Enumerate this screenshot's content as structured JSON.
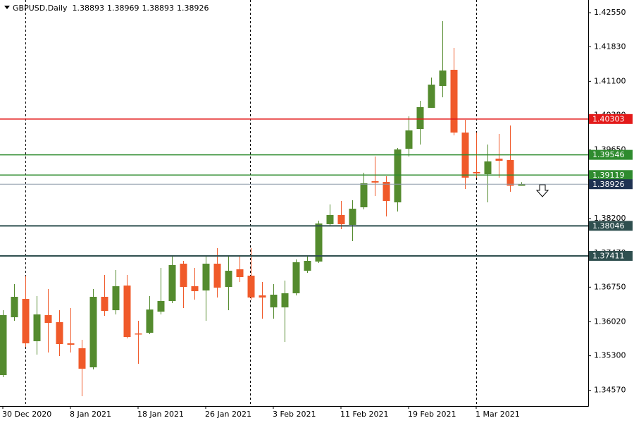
{
  "chart_data": {
    "type": "candlestick",
    "symbol": "GBPUSD,Daily",
    "categories": [
      "30 Dec 2020",
      null,
      null,
      null,
      null,
      null,
      "8 Jan 2021",
      null,
      null,
      null,
      null,
      null,
      "18 Jan 2021",
      null,
      null,
      null,
      null,
      null,
      "26 Jan 2021",
      null,
      null,
      null,
      null,
      null,
      "3 Feb 2021",
      null,
      null,
      null,
      null,
      null,
      "11 Feb 2021",
      null,
      null,
      null,
      null,
      null,
      "19 Feb 2021",
      null,
      null,
      null,
      null,
      null,
      "1 Mar 2021",
      null,
      null,
      null,
      null
    ],
    "open": [
      1.34892,
      1.36114,
      1.36501,
      1.35608,
      1.36159,
      1.3601,
      1.35563,
      1.35459,
      1.35056,
      1.36546,
      1.36263,
      1.36784,
      1.35771,
      1.35786,
      1.36233,
      1.36457,
      1.37246,
      1.3677,
      1.3668,
      1.37246,
      1.36755,
      1.37127,
      1.36993,
      1.36576,
      1.36323,
      1.36323,
      1.36621,
      1.37097,
      1.37291,
      1.38081,
      1.38274,
      1.38066,
      1.38438,
      1.38989,
      1.38974,
      1.38542,
      1.39675,
      1.40092,
      1.40539,
      1.41001,
      1.41343,
      1.40017,
      1.39183,
      1.39138,
      1.39466,
      1.39436,
      1.38893
    ],
    "high": [
      1.36263,
      1.36814,
      1.36978,
      1.36561,
      1.3671,
      1.36263,
      1.36308,
      1.35637,
      1.3671,
      1.37008,
      1.37112,
      1.37008,
      1.3604,
      1.36561,
      1.37157,
      1.3741,
      1.37306,
      1.37157,
      1.37425,
      1.37574,
      1.37425,
      1.37425,
      1.37574,
      1.36859,
      1.36814,
      1.36889,
      1.37336,
      1.37425,
      1.38155,
      1.38498,
      1.38572,
      1.38587,
      1.39168,
      1.39511,
      1.39094,
      1.3969,
      1.4036,
      1.40688,
      1.41179,
      1.42371,
      1.41805,
      1.40286,
      1.40017,
      1.39764,
      1.39988,
      1.40166,
      1.38969
    ],
    "low": [
      1.34848,
      1.3604,
      1.35488,
      1.35324,
      1.35369,
      1.35295,
      1.35369,
      1.34445,
      1.35012,
      1.36144,
      1.36174,
      1.35667,
      1.35131,
      1.35757,
      1.36174,
      1.36412,
      1.36308,
      1.36487,
      1.3604,
      1.36531,
      1.36263,
      1.36859,
      1.36487,
      1.36084,
      1.36084,
      1.35593,
      1.36576,
      1.37053,
      1.37261,
      1.38051,
      1.37976,
      1.37723,
      1.38393,
      1.38677,
      1.38244,
      1.38349,
      1.39511,
      1.39764,
      1.40539,
      1.40762,
      1.39958,
      1.38826,
      1.39064,
      1.38542,
      1.39064,
      1.38766,
      1.38893
    ],
    "close": [
      1.36159,
      1.36546,
      1.35563,
      1.36174,
      1.35995,
      1.35548,
      1.35533,
      1.35027,
      1.36546,
      1.36248,
      1.3677,
      1.35697,
      1.35757,
      1.36278,
      1.36457,
      1.37217,
      1.36755,
      1.36665,
      1.37246,
      1.3674,
      1.37097,
      1.36963,
      1.36531,
      1.36531,
      1.36591,
      1.36621,
      1.37276,
      1.37306,
      1.38095,
      1.38274,
      1.38081,
      1.38408,
      1.38945,
      1.3896,
      1.38572,
      1.3966,
      1.40062,
      1.40554,
      1.4103,
      1.41328,
      1.40017,
      1.39064,
      1.39153,
      1.39407,
      1.39421,
      1.38893,
      1.38926
    ],
    "up_color": "#548b2e",
    "down_color": "#f05a2a",
    "levels": [
      {
        "value": 1.40303,
        "color": "#e31a1a"
      },
      {
        "value": 1.39546,
        "color": "#2e8b2e"
      },
      {
        "value": 1.39119,
        "color": "#2e8b2e"
      },
      {
        "value": 1.38926,
        "color": "#1f3252"
      },
      {
        "value": 1.38046,
        "color": "#2f4f4f"
      },
      {
        "value": 1.37411,
        "color": "#2f4f4f"
      }
    ],
    "ylim": [
      1.34237,
      1.42818
    ],
    "yticks": [
      {
        "value": 1.4255,
        "label": "1.42550"
      },
      {
        "value": 1.4183,
        "label": "1.41830"
      },
      {
        "value": 1.411,
        "label": "1.41100"
      },
      {
        "value": 1.4038,
        "label": "1.40380"
      },
      {
        "value": 1.3965,
        "label": "1.39650"
      },
      {
        "value": 1.3892,
        "label": "1.38920"
      },
      {
        "value": 1.382,
        "label": "1.38200"
      },
      {
        "value": 1.3747,
        "label": "1.37470"
      },
      {
        "value": 1.3675,
        "label": "1.36750"
      },
      {
        "value": 1.3602,
        "label": "1.36020"
      },
      {
        "value": 1.353,
        "label": "1.35300"
      },
      {
        "value": 1.3457,
        "label": "1.34570"
      }
    ]
  }
}
